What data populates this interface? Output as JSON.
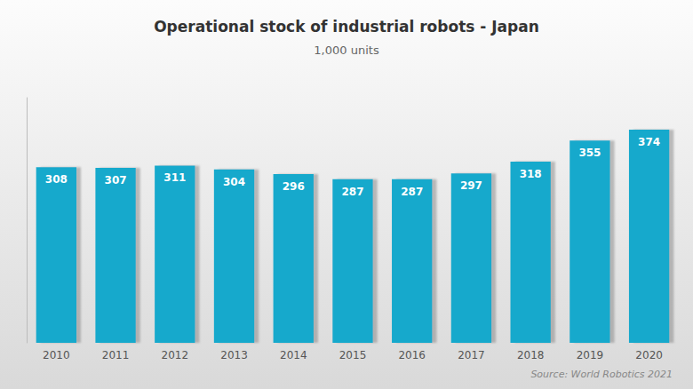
{
  "chart_data": {
    "type": "bar",
    "title": "Operational stock of industrial robots - Japan",
    "subtitle": "1,000 units",
    "source": "Source: World Robotics 2021",
    "categories": [
      "2010",
      "2011",
      "2012",
      "2013",
      "2014",
      "2015",
      "2016",
      "2017",
      "2018",
      "2019",
      "2020"
    ],
    "values": [
      308,
      307,
      311,
      304,
      296,
      287,
      287,
      297,
      318,
      355,
      374
    ],
    "color": "#18A9CC",
    "ylim": [
      0,
      430
    ],
    "data_labels": true,
    "tick_labels": "x",
    "grid": false
  }
}
